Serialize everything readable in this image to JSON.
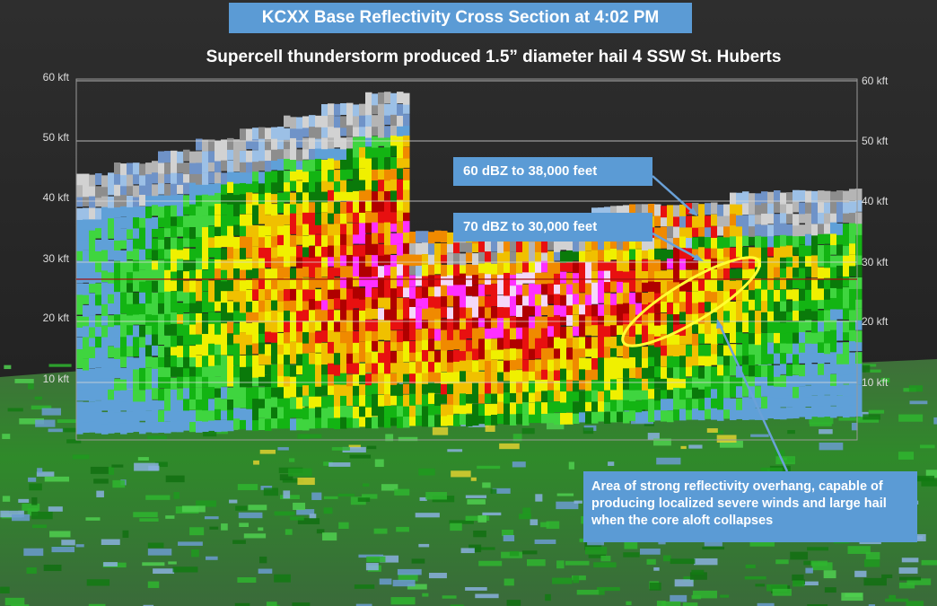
{
  "header": {
    "title": "KCXX Base Reflectivity Cross Section at 4:02 PM",
    "subtitle": "Supercell thunderstorm produced 1.5” diameter hail 4 SSW St. Huberts"
  },
  "axis": {
    "left_labels": [
      "60 kft",
      "50 kft",
      "40 kft",
      "30 kft",
      "20 kft",
      "10 kft"
    ],
    "right_labels": [
      "60 kft",
      "50 kft",
      "40 kft",
      "30 kft",
      "20 kft",
      "10 kft"
    ]
  },
  "annotations": [
    {
      "text": "60 dBZ to 38,000 feet"
    },
    {
      "text": "70 dBZ to 30,000 feet"
    },
    {
      "text": "Area of strong reflectivity overhang, capable of producing localized severe winds and large hail when the core aloft collapses"
    }
  ]
}
